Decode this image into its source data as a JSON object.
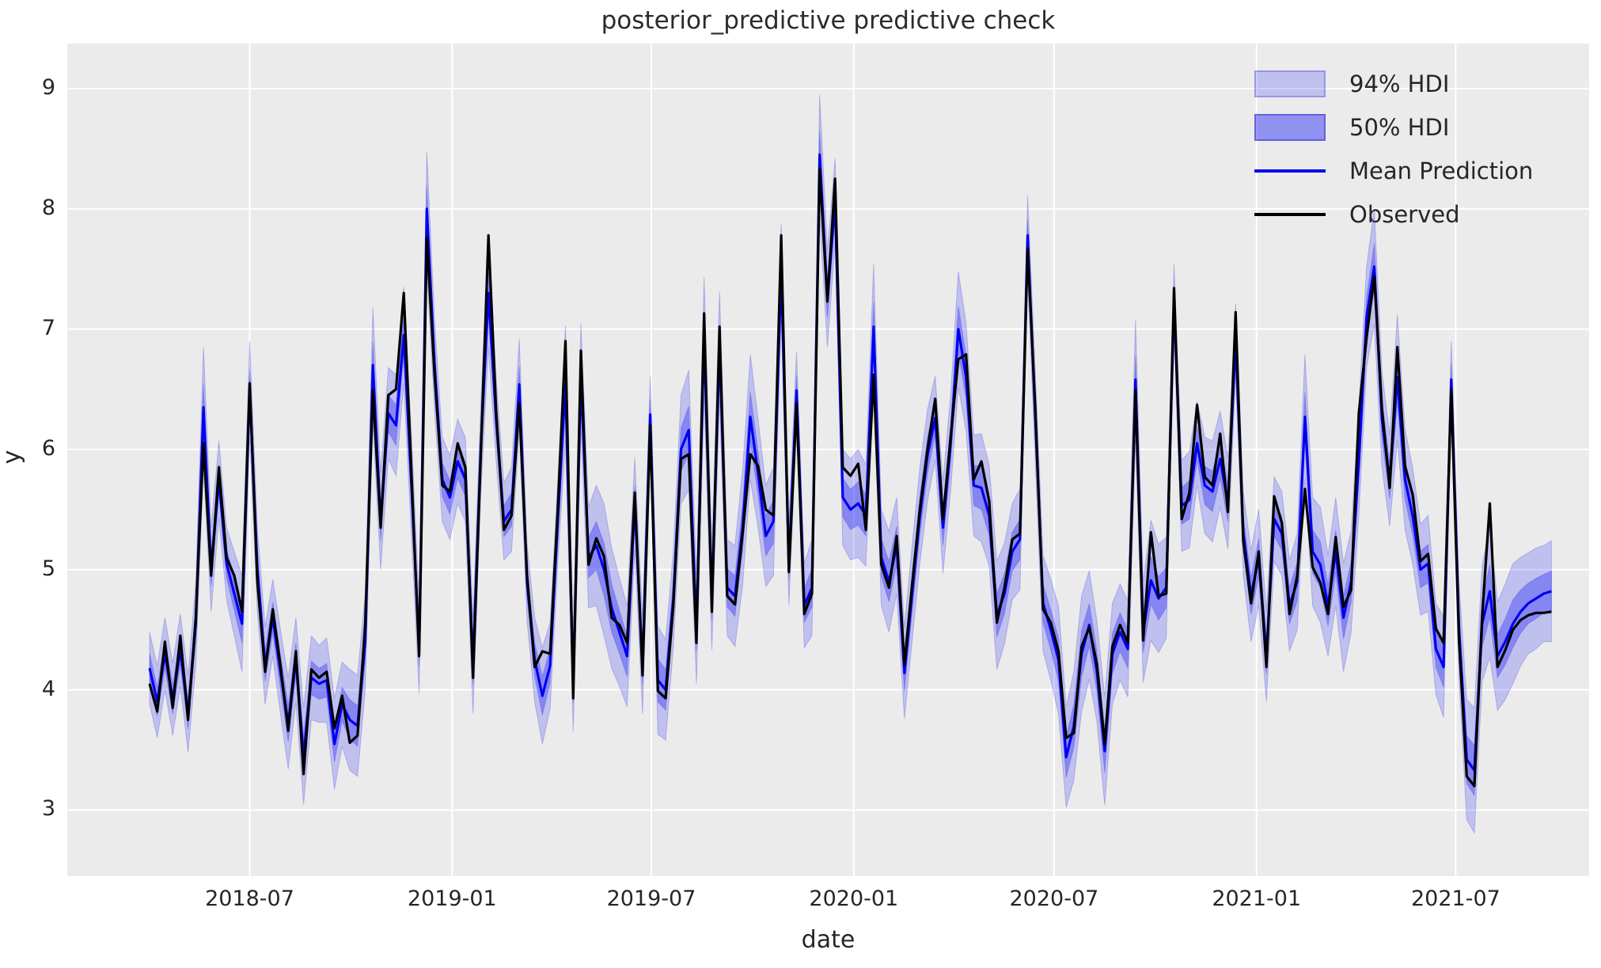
{
  "title": "posterior_predictive predictive check",
  "xlabel": "date",
  "ylabel": "y",
  "legend": {
    "items": [
      {
        "label": "94% HDI",
        "swatch": "band-light"
      },
      {
        "label": "50% HDI",
        "swatch": "band-dark"
      },
      {
        "label": "Mean Prediction",
        "swatch": "blue-line"
      },
      {
        "label": "Observed",
        "swatch": "black-line"
      }
    ]
  },
  "colors": {
    "axes_background": "#ebebeb",
    "grid": "#ffffff",
    "observed": "#000000",
    "mean": "#0000ee",
    "hdi94_fill": "rgba(0,0,255,0.18)",
    "hdi50_fill": "rgba(0,0,255,0.30)",
    "band_edge": "rgba(40,40,220,0.25)",
    "text": "#262626"
  },
  "chart_data": {
    "type": "line",
    "title": "posterior_predictive predictive check",
    "xlabel": "date",
    "ylabel": "y",
    "grid": true,
    "legend_position": "upper right",
    "x_start_date": "2018-04-01",
    "x_freq_days": 7,
    "n_points": 183,
    "ylim": [
      2.45,
      9.375
    ],
    "yticks": [
      3,
      4,
      5,
      6,
      7,
      8,
      9
    ],
    "xticks": [
      "2018-07-01",
      "2019-01-01",
      "2019-07-01",
      "2020-01-01",
      "2020-07-01",
      "2021-01-01",
      "2021-07-01"
    ],
    "xtick_labels": [
      "2018-07",
      "2019-01",
      "2019-07",
      "2020-01",
      "2020-07",
      "2021-01",
      "2021-07"
    ],
    "hdi50_ratio": 0.4,
    "series": [
      {
        "name": "Observed",
        "values": [
          4.05,
          3.82,
          4.4,
          3.85,
          4.45,
          3.75,
          4.6,
          6.05,
          4.95,
          5.85,
          5.1,
          4.95,
          4.65,
          6.55,
          4.9,
          4.15,
          4.67,
          4.2,
          3.66,
          4.32,
          3.3,
          4.17,
          4.1,
          4.15,
          3.68,
          3.95,
          3.56,
          3.62,
          4.55,
          6.49,
          5.35,
          6.45,
          6.5,
          7.3,
          5.8,
          4.28,
          7.76,
          6.62,
          5.7,
          5.65,
          6.05,
          5.85,
          4.1,
          5.95,
          7.78,
          6.32,
          5.33,
          5.45,
          6.38,
          4.96,
          4.19,
          4.32,
          4.3,
          5.5,
          6.9,
          3.93,
          6.82,
          5.04,
          5.26,
          5.11,
          4.6,
          4.54,
          4.39,
          5.64,
          4.12,
          6.2,
          3.99,
          3.93,
          4.7,
          5.92,
          5.96,
          4.39,
          7.13,
          4.65,
          7.02,
          4.78,
          4.71,
          5.3,
          5.96,
          5.86,
          5.5,
          5.45,
          7.78,
          4.98,
          6.38,
          4.63,
          4.8,
          8.33,
          7.23,
          8.25,
          5.85,
          5.78,
          5.88,
          5.33,
          6.62,
          5.04,
          4.85,
          5.28,
          4.21,
          4.87,
          5.5,
          6.0,
          6.42,
          5.42,
          6.1,
          6.75,
          6.79,
          5.75,
          5.9,
          5.57,
          4.56,
          4.85,
          5.25,
          5.3,
          7.67,
          6.32,
          4.67,
          4.56,
          4.32,
          3.6,
          3.64,
          4.36,
          4.52,
          4.21,
          3.55,
          4.36,
          4.54,
          4.39,
          6.49,
          4.41,
          5.31,
          4.78,
          4.8,
          7.34,
          5.42,
          5.64,
          6.37,
          5.77,
          5.7,
          6.13,
          5.48,
          7.14,
          5.24,
          4.72,
          5.15,
          4.19,
          5.61,
          5.39,
          4.63,
          4.95,
          5.67,
          5.02,
          4.89,
          4.63,
          5.27,
          4.69,
          4.83,
          6.3,
          6.93,
          7.44,
          6.34,
          5.68,
          6.85,
          5.86,
          5.62,
          5.07,
          5.13,
          4.51,
          4.39,
          6.5,
          4.41,
          3.28,
          3.2,
          4.61,
          5.55,
          4.19,
          4.33,
          4.5,
          4.58,
          4.62,
          4.64,
          4.64,
          4.65
        ]
      },
      {
        "name": "Mean Prediction",
        "values": [
          4.18,
          3.9,
          4.3,
          3.92,
          4.33,
          3.8,
          4.55,
          6.35,
          5.0,
          5.75,
          5.05,
          4.8,
          4.55,
          6.5,
          5.0,
          4.2,
          4.6,
          4.15,
          3.72,
          4.25,
          3.45,
          4.1,
          4.05,
          4.08,
          3.55,
          3.88,
          3.75,
          3.7,
          4.4,
          6.7,
          5.4,
          6.3,
          6.2,
          6.95,
          5.7,
          4.35,
          8.0,
          6.7,
          5.75,
          5.6,
          5.9,
          5.75,
          4.2,
          6.0,
          7.3,
          6.25,
          5.4,
          5.5,
          6.54,
          4.9,
          4.25,
          3.95,
          4.2,
          5.4,
          6.55,
          4.05,
          6.6,
          5.1,
          5.2,
          5.0,
          4.68,
          4.48,
          4.28,
          5.55,
          4.2,
          6.29,
          4.08,
          4.0,
          4.75,
          6.0,
          6.16,
          4.5,
          6.93,
          4.75,
          6.86,
          4.85,
          4.78,
          5.35,
          6.27,
          5.8,
          5.28,
          5.4,
          7.5,
          5.05,
          6.49,
          4.7,
          4.85,
          8.45,
          7.25,
          8.07,
          5.6,
          5.5,
          5.55,
          5.45,
          7.02,
          5.1,
          4.9,
          5.2,
          4.14,
          4.8,
          5.45,
          5.95,
          6.26,
          5.35,
          6.05,
          7.0,
          6.6,
          5.7,
          5.68,
          5.45,
          4.62,
          4.8,
          5.15,
          5.25,
          7.78,
          6.25,
          4.72,
          4.5,
          4.25,
          3.44,
          3.7,
          4.3,
          4.54,
          4.15,
          3.49,
          4.3,
          4.48,
          4.34,
          6.58,
          4.48,
          4.91,
          4.76,
          4.85,
          7.24,
          5.53,
          5.58,
          6.05,
          5.7,
          5.65,
          5.92,
          5.55,
          6.91,
          5.3,
          4.78,
          5.1,
          4.28,
          5.42,
          5.3,
          4.7,
          4.9,
          6.27,
          5.15,
          5.04,
          4.7,
          5.15,
          4.6,
          4.9,
          5.9,
          7.1,
          7.52,
          6.25,
          5.74,
          6.6,
          5.75,
          5.44,
          5.0,
          5.05,
          4.34,
          4.19,
          6.58,
          4.5,
          3.42,
          3.33,
          4.55,
          4.82,
          4.28,
          4.4,
          4.55,
          4.65,
          4.72,
          4.76,
          4.8,
          4.82
        ]
      }
    ],
    "hdi94_halfwidth": [
      0.3,
      0.3,
      0.3,
      0.3,
      0.3,
      0.32,
      0.35,
      0.5,
      0.35,
      0.32,
      0.3,
      0.35,
      0.4,
      0.4,
      0.35,
      0.32,
      0.32,
      0.35,
      0.38,
      0.35,
      0.4,
      0.35,
      0.32,
      0.35,
      0.38,
      0.35,
      0.42,
      0.42,
      0.4,
      0.48,
      0.4,
      0.38,
      0.42,
      0.4,
      0.42,
      0.38,
      0.48,
      0.38,
      0.35,
      0.35,
      0.35,
      0.35,
      0.4,
      0.38,
      0.45,
      0.35,
      0.32,
      0.35,
      0.38,
      0.32,
      0.35,
      0.4,
      0.36,
      0.35,
      0.48,
      0.4,
      0.45,
      0.42,
      0.5,
      0.55,
      0.5,
      0.45,
      0.42,
      0.38,
      0.4,
      0.32,
      0.45,
      0.42,
      0.4,
      0.45,
      0.5,
      0.45,
      0.5,
      0.42,
      0.45,
      0.4,
      0.42,
      0.48,
      0.52,
      0.45,
      0.42,
      0.45,
      0.38,
      0.35,
      0.32,
      0.35,
      0.4,
      0.5,
      0.4,
      0.35,
      0.4,
      0.42,
      0.45,
      0.42,
      0.52,
      0.4,
      0.42,
      0.4,
      0.38,
      0.4,
      0.4,
      0.38,
      0.35,
      0.38,
      0.4,
      0.48,
      0.45,
      0.42,
      0.45,
      0.42,
      0.45,
      0.42,
      0.4,
      0.42,
      0.33,
      0.38,
      0.4,
      0.42,
      0.45,
      0.42,
      0.45,
      0.48,
      0.45,
      0.42,
      0.45,
      0.42,
      0.4,
      0.4,
      0.5,
      0.42,
      0.5,
      0.45,
      0.42,
      0.3,
      0.38,
      0.4,
      0.35,
      0.4,
      0.42,
      0.4,
      0.38,
      0.3,
      0.35,
      0.38,
      0.4,
      0.38,
      0.35,
      0.35,
      0.38,
      0.4,
      0.52,
      0.45,
      0.48,
      0.42,
      0.45,
      0.45,
      0.42,
      0.45,
      0.42,
      0.48,
      0.4,
      0.38,
      0.52,
      0.42,
      0.4,
      0.38,
      0.4,
      0.38,
      0.42,
      0.32,
      0.4,
      0.5,
      0.52,
      0.48,
      0.55,
      0.45,
      0.48,
      0.5,
      0.45,
      0.42,
      0.42,
      0.4,
      0.42
    ]
  }
}
